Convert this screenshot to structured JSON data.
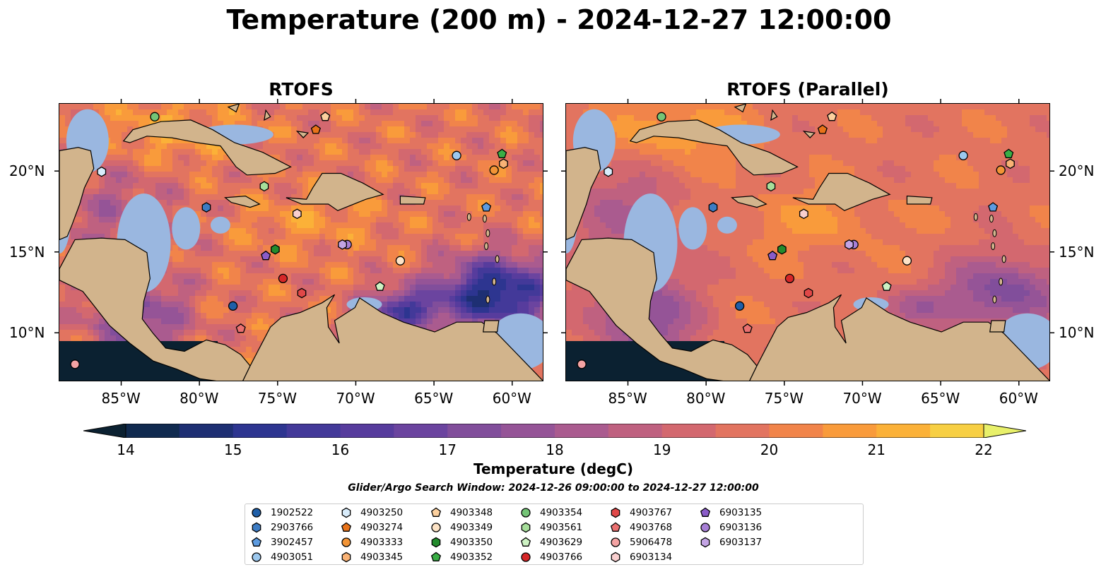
{
  "title": "Temperature (200 m) - 2024-12-27 12:00:00",
  "panels": [
    {
      "title": "RTOFS",
      "variant": "main"
    },
    {
      "title": "RTOFS (Parallel)",
      "variant": "parallel"
    }
  ],
  "map": {
    "lon_range": [
      -89.0,
      -58.0
    ],
    "lat_range": [
      7.0,
      24.2
    ],
    "lon_ticks": [
      -85,
      -80,
      -75,
      -70,
      -65,
      -60
    ],
    "lon_tick_labels": [
      "85°W",
      "80°W",
      "75°W",
      "70°W",
      "65°W",
      "60°W"
    ],
    "lat_ticks": [
      10,
      15,
      20
    ],
    "lat_tick_labels": [
      "10°N",
      "15°N",
      "20°N"
    ],
    "land_color": "#d2b48c",
    "shelf_color": "#9ab7e0",
    "deep_color": "#082033"
  },
  "colorbar": {
    "min": 14,
    "max": 22,
    "step": 0.5,
    "extend": "both",
    "tick_labels": [
      "14",
      "15",
      "16",
      "17",
      "18",
      "19",
      "20",
      "21",
      "22"
    ],
    "label": "Temperature (degC)",
    "colors": [
      "#0b2131",
      "#102a4f",
      "#1e2f73",
      "#2d3590",
      "#433999",
      "#573c9d",
      "#6b449f",
      "#814e9b",
      "#955497",
      "#aa5b8f",
      "#bf6180",
      "#d3686f",
      "#e27460",
      "#f1844a",
      "#f99b3b",
      "#fbb138",
      "#f7cf43",
      "#e8f06a"
    ]
  },
  "search_window": "Glider/Argo Search Window: 2024-12-26 09:00:00 to 2024-12-27 12:00:00",
  "legend": {
    "entries": [
      {
        "label": "1902522",
        "marker": "circle",
        "color": "#1f5fa8"
      },
      {
        "label": "2903766",
        "marker": "hexagon",
        "color": "#3d7cc4"
      },
      {
        "label": "3902457",
        "marker": "pentagon",
        "color": "#5d9be0"
      },
      {
        "label": "4903051",
        "marker": "circle",
        "color": "#9cc8ee"
      },
      {
        "label": "4903250",
        "marker": "hexagon",
        "color": "#d8ecfb"
      },
      {
        "label": "4903274",
        "marker": "pentagon",
        "color": "#e8731a"
      },
      {
        "label": "4903333",
        "marker": "circle",
        "color": "#f29436"
      },
      {
        "label": "4903345",
        "marker": "hexagon",
        "color": "#f9b275"
      },
      {
        "label": "4903348",
        "marker": "pentagon",
        "color": "#fcd09e"
      },
      {
        "label": "4903349",
        "marker": "circle",
        "color": "#fde3c6"
      },
      {
        "label": "4903350",
        "marker": "hexagon",
        "color": "#238b2d"
      },
      {
        "label": "4903352",
        "marker": "pentagon",
        "color": "#3aae46"
      },
      {
        "label": "4903354",
        "marker": "circle",
        "color": "#74c476"
      },
      {
        "label": "4903561",
        "marker": "hexagon",
        "color": "#a6de9a"
      },
      {
        "label": "4903629",
        "marker": "pentagon",
        "color": "#cdf2c3"
      },
      {
        "label": "4903766",
        "marker": "circle",
        "color": "#d62728"
      },
      {
        "label": "4903767",
        "marker": "hexagon",
        "color": "#e04848"
      },
      {
        "label": "4903768",
        "marker": "pentagon",
        "color": "#ea7070"
      },
      {
        "label": "5906478",
        "marker": "circle",
        "color": "#f4a3a3"
      },
      {
        "label": "6903134",
        "marker": "hexagon",
        "color": "#f9cfcf"
      },
      {
        "label": "6903135",
        "marker": "pentagon",
        "color": "#8a5cc8"
      },
      {
        "label": "6903136",
        "marker": "circle",
        "color": "#a77fd6"
      },
      {
        "label": "6903137",
        "marker": "hexagon",
        "color": "#c3a4e4"
      }
    ]
  },
  "floats": [
    {
      "id": "1902522",
      "lon": -77.9,
      "lat": 11.7
    },
    {
      "id": "2903766",
      "lon": -79.6,
      "lat": 17.8
    },
    {
      "id": "3902457",
      "lon": -61.7,
      "lat": 17.8
    },
    {
      "id": "4903051",
      "lon": -63.6,
      "lat": 21.0
    },
    {
      "id": "4903250",
      "lon": -86.3,
      "lat": 20.0
    },
    {
      "id": "4903274",
      "lon": -72.6,
      "lat": 22.6
    },
    {
      "id": "4903333",
      "lon": -61.2,
      "lat": 20.1
    },
    {
      "id": "4903345",
      "lon": -60.6,
      "lat": 20.5
    },
    {
      "id": "4903348",
      "lon": -72.0,
      "lat": 23.4
    },
    {
      "id": "4903349",
      "lon": -67.2,
      "lat": 14.5
    },
    {
      "id": "4903350",
      "lon": -75.2,
      "lat": 15.2
    },
    {
      "id": "4903352",
      "lon": -60.7,
      "lat": 21.1
    },
    {
      "id": "4903354",
      "lon": -82.9,
      "lat": 23.4
    },
    {
      "id": "4903561",
      "lon": -75.9,
      "lat": 19.1
    },
    {
      "id": "4903629",
      "lon": -68.5,
      "lat": 12.9
    },
    {
      "id": "4903766",
      "lon": -74.7,
      "lat": 13.4
    },
    {
      "id": "4903767",
      "lon": -73.5,
      "lat": 12.5
    },
    {
      "id": "4903768",
      "lon": -77.4,
      "lat": 10.3
    },
    {
      "id": "5906478",
      "lon": -88.0,
      "lat": 8.1
    },
    {
      "id": "6903134",
      "lon": -73.8,
      "lat": 17.4
    },
    {
      "id": "6903135",
      "lon": -75.8,
      "lat": 14.8
    },
    {
      "id": "6903136",
      "lon": -70.6,
      "lat": 15.5
    },
    {
      "id": "6903137",
      "lon": -70.9,
      "lat": 15.5
    }
  ]
}
